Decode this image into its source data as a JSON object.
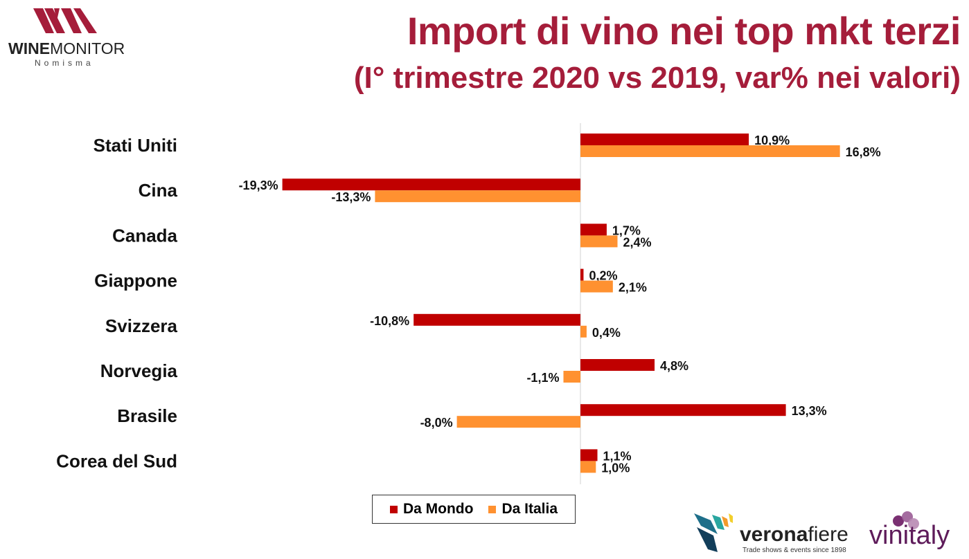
{
  "logos": {
    "winemonitor": {
      "brand_bold": "WINE",
      "brand_light": "MONITOR",
      "sub": "Nomisma"
    },
    "veronafiere": {
      "name_bold": "verona",
      "name_light": "fiere",
      "tagline": "Trade shows & events since 1898"
    },
    "vinitaly": {
      "name": "vinitaly"
    }
  },
  "chart_data": {
    "type": "bar",
    "orientation": "horizontal",
    "title": "Import di vino nei top mkt terzi",
    "subtitle": "(I° trimestre 2020 vs 2019, var% nei valori)",
    "categories": [
      "Stati Uniti",
      "Cina",
      "Canada",
      "Giappone",
      "Svizzera",
      "Norvegia",
      "Brasile",
      "Corea del Sud"
    ],
    "series": [
      {
        "name": "Da Mondo",
        "color": "#c00000",
        "values": [
          10.9,
          -19.3,
          1.7,
          0.2,
          -10.8,
          4.8,
          13.3,
          1.1
        ],
        "labels": [
          "10,9%",
          "-19,3%",
          "1,7%",
          "0,2%",
          "-10,8%",
          "4,8%",
          "13,3%",
          "1,1%"
        ]
      },
      {
        "name": "Da Italia",
        "color": "#ff9130",
        "values": [
          16.8,
          -13.3,
          2.4,
          2.1,
          0.4,
          -1.1,
          -8.0,
          1.0
        ],
        "labels": [
          "16,8%",
          "-13,3%",
          "2,4%",
          "2,1%",
          "0,4%",
          "-1,1%",
          "-8,0%",
          "1,0%"
        ]
      }
    ],
    "legend": "bottom",
    "grid": false
  }
}
